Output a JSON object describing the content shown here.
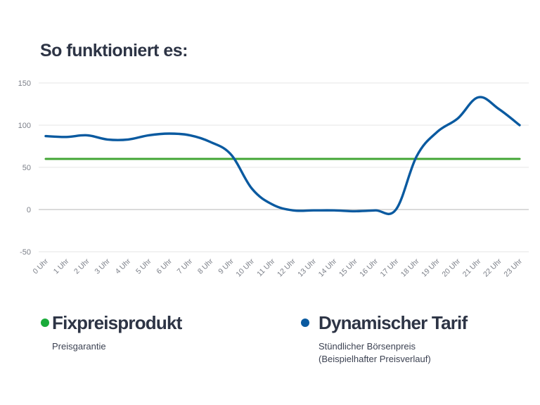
{
  "title": "So funktioniert es:",
  "chart_data": {
    "type": "line",
    "title": "So funktioniert es:",
    "xlabel": "",
    "ylabel": "",
    "categories": [
      "0 Uhr",
      "1 Uhr",
      "2 Uhr",
      "3 Uhr",
      "4 Uhr",
      "5 Uhr",
      "6 Uhr",
      "7 Uhr",
      "8 Uhr",
      "9 Uhr",
      "10 Uhr",
      "11 Uhr",
      "12 Uhr",
      "13 Uhr",
      "14 Uhr",
      "15 Uhr",
      "16 Uhr",
      "17 Uhr",
      "18 Uhr",
      "19 Uhr",
      "20 Uhr",
      "21 Uhr",
      "22 Uhr",
      "23 Uhr"
    ],
    "yticks": [
      150,
      100,
      50,
      0,
      -50
    ],
    "ylim": [
      -50,
      150
    ],
    "grid": true,
    "series": [
      {
        "name": "Fixpreisprodukt",
        "color": "#43a636",
        "values": [
          60,
          60,
          60,
          60,
          60,
          60,
          60,
          60,
          60,
          60,
          60,
          60,
          60,
          60,
          60,
          60,
          60,
          60,
          60,
          60,
          60,
          60,
          60,
          60
        ]
      },
      {
        "name": "Dynamischer Tarif",
        "color": "#0a5aa0",
        "values": [
          87,
          86,
          88,
          83,
          83,
          88,
          90,
          88,
          80,
          65,
          25,
          6,
          -1,
          -1,
          -1,
          -2,
          -1,
          0,
          63,
          92,
          108,
          133,
          119,
          100
        ]
      }
    ]
  },
  "legend": [
    {
      "name": "Fixpreisprodukt",
      "desc1": "Preisgarantie",
      "desc2": "",
      "color": "#1aab3a"
    },
    {
      "name": "Dynamischer Tarif",
      "desc1": "Stündlicher Börsenpreis",
      "desc2": "(Beispielhafter Preisverlauf)",
      "color": "#0a5aa0"
    }
  ]
}
